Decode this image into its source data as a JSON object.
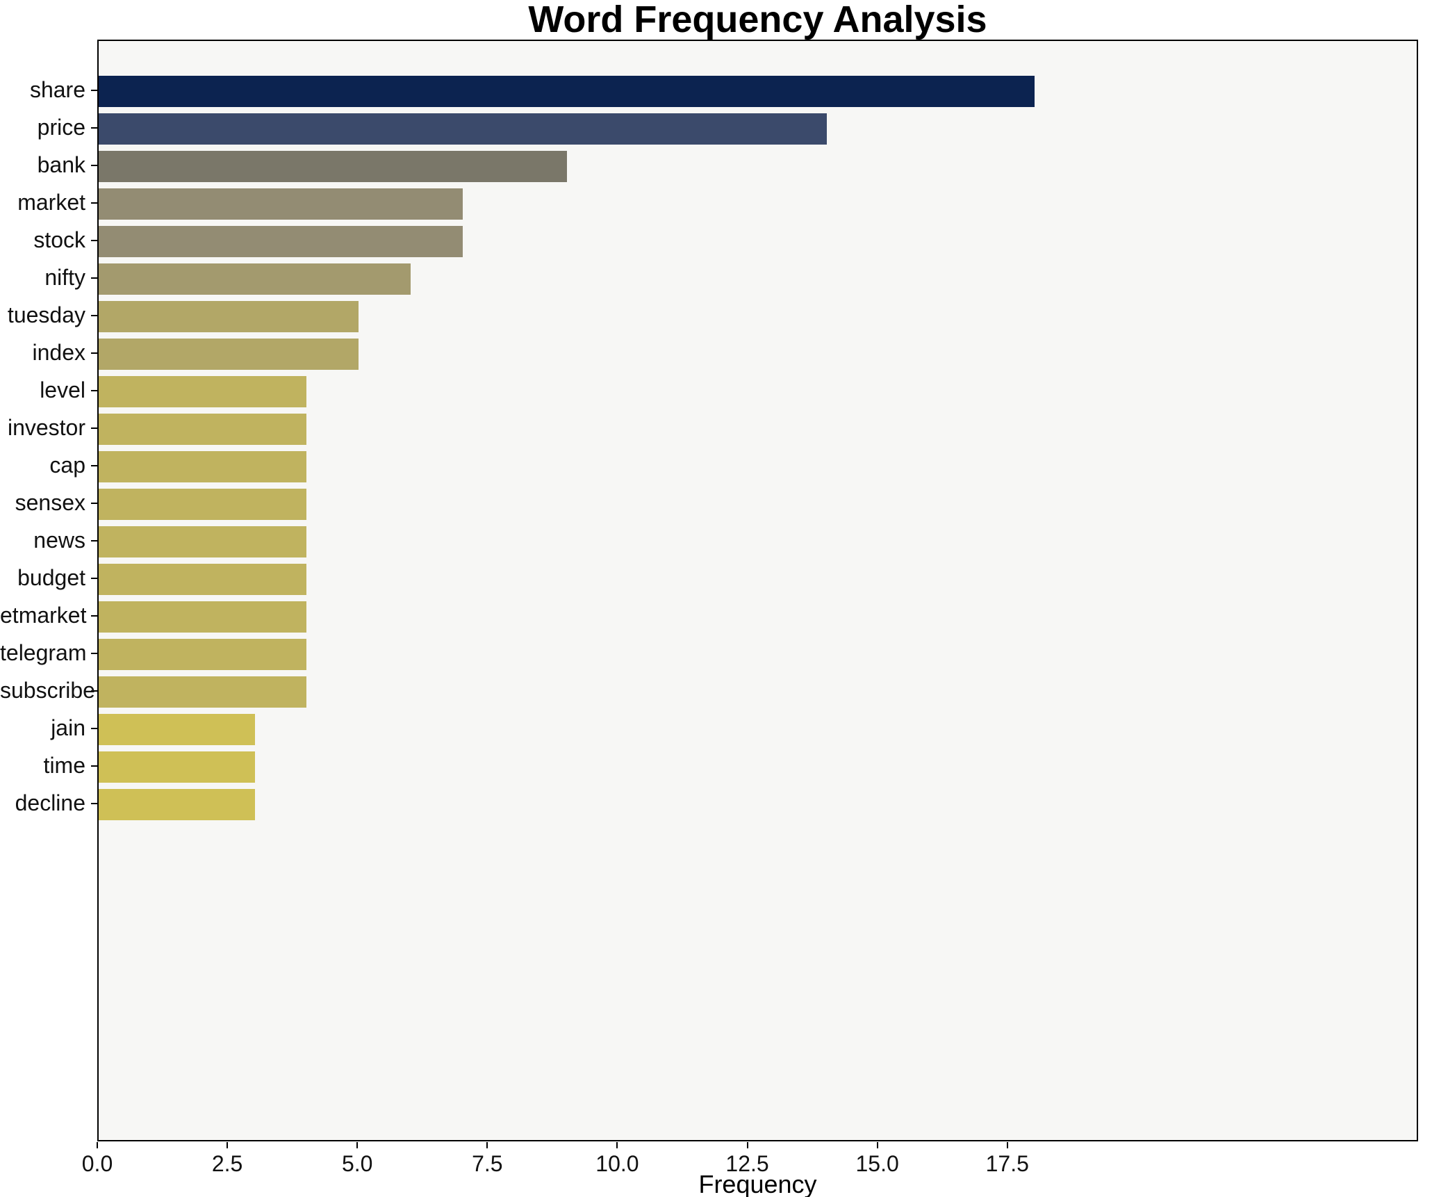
{
  "chart_data": {
    "type": "bar",
    "orientation": "horizontal",
    "title": "Word Frequency Analysis",
    "xlabel": "Frequency",
    "ylabel": "",
    "categories": [
      "share",
      "price",
      "bank",
      "market",
      "stock",
      "nifty",
      "tuesday",
      "index",
      "level",
      "investor",
      "cap",
      "sensex",
      "news",
      "budget",
      "etmarket",
      "telegram",
      "subscribe",
      "jain",
      "time",
      "decline"
    ],
    "values": [
      18,
      14,
      9,
      7,
      7,
      6,
      5,
      5,
      4,
      4,
      4,
      4,
      4,
      4,
      4,
      4,
      4,
      3,
      3,
      3
    ],
    "bar_colors": [
      "#0c2350",
      "#3b4a6b",
      "#7a7769",
      "#938c73",
      "#938c73",
      "#a39a6e",
      "#b2a767",
      "#b2a767",
      "#c0b35f",
      "#c0b35f",
      "#c0b35f",
      "#c0b35f",
      "#c0b35f",
      "#c0b35f",
      "#c0b35f",
      "#c0b35f",
      "#c0b35f",
      "#cfc056",
      "#cfc056",
      "#cfc056"
    ],
    "xticks": [
      0.0,
      2.5,
      5.0,
      7.5,
      10.0,
      12.5,
      15.0,
      17.5
    ],
    "xtick_labels": [
      "0.0",
      "2.5",
      "5.0",
      "7.5",
      "10.0",
      "12.5",
      "15.0",
      "17.5"
    ],
    "xlim": [
      0,
      25.4
    ],
    "grid": false,
    "legend": null,
    "plot_bg": "#f7f7f5",
    "figure_bg": "#ffffff",
    "spine_color": "#000000"
  }
}
